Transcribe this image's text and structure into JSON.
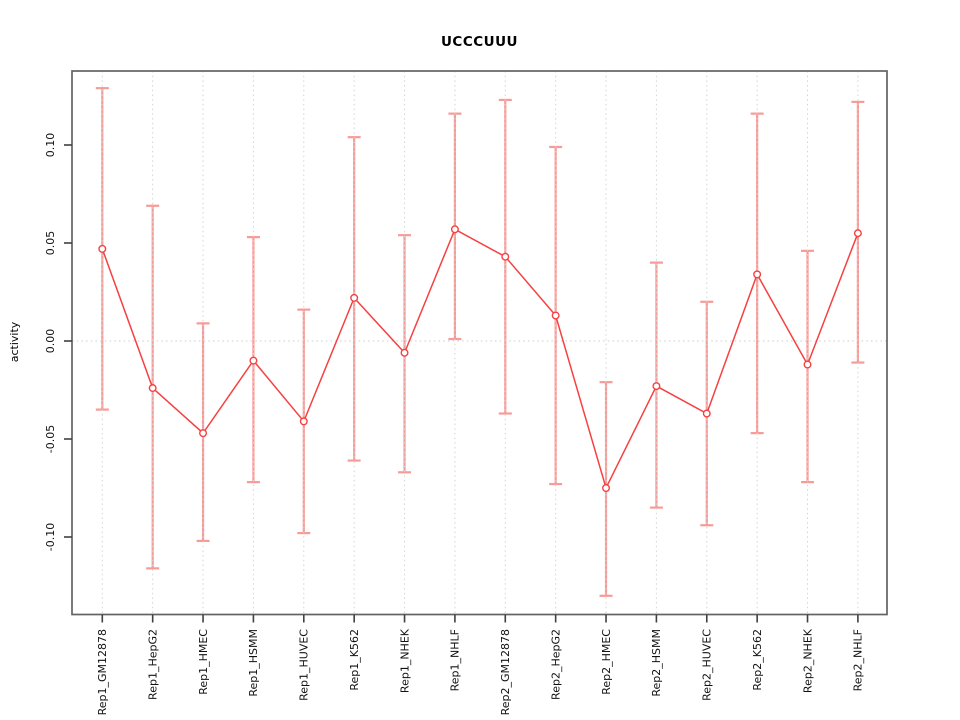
{
  "chart_data": {
    "type": "line",
    "title": "UCCCUUU",
    "xlabel": "",
    "ylabel": "activity",
    "legend": null,
    "grid": "dotted-vertical-at-each-category",
    "zero_reference_line": true,
    "error_bars": true,
    "point_marker": "open-circle",
    "categories": [
      "Rep1_GM12878",
      "Rep1_HepG2",
      "Rep1_HMEC",
      "Rep1_HSMM",
      "Rep1_HUVEC",
      "Rep1_K562",
      "Rep1_NHEK",
      "Rep1_NHLF",
      "Rep2_GM12878",
      "Rep2_HepG2",
      "Rep2_HMEC",
      "Rep2_HSMM",
      "Rep2_HUVEC",
      "Rep2_K562",
      "Rep2_NHEK",
      "Rep2_NHLF"
    ],
    "series": [
      {
        "name": "activity",
        "values": [
          0.047,
          -0.024,
          -0.047,
          -0.01,
          -0.041,
          0.022,
          -0.006,
          0.057,
          0.043,
          0.013,
          -0.075,
          -0.023,
          -0.037,
          0.034,
          -0.012,
          0.055
        ],
        "err_high": [
          0.129,
          0.069,
          0.009,
          0.053,
          0.016,
          0.104,
          0.054,
          0.116,
          0.123,
          0.099,
          -0.021,
          0.04,
          0.02,
          0.116,
          0.046,
          0.122
        ],
        "err_low": [
          -0.035,
          -0.116,
          -0.102,
          -0.072,
          -0.098,
          -0.061,
          -0.067,
          0.001,
          -0.037,
          -0.073,
          -0.13,
          -0.085,
          -0.094,
          -0.047,
          -0.072,
          -0.011
        ]
      }
    ],
    "yticks": [
      -0.1,
      -0.05,
      0.0,
      0.05,
      0.1
    ],
    "ytick_labels": [
      "-0.10",
      "-0.05",
      "0.00",
      "0.05",
      "0.10"
    ],
    "ylim": [
      -0.139,
      0.138
    ],
    "colors": {
      "line": "#f54141",
      "point": "#f54141",
      "error_bar": "#f79b97",
      "grid": "#d4d4d4",
      "zero_line": "#cccccc",
      "box": "#636363",
      "tick": "#404040",
      "text": "#111111"
    }
  }
}
